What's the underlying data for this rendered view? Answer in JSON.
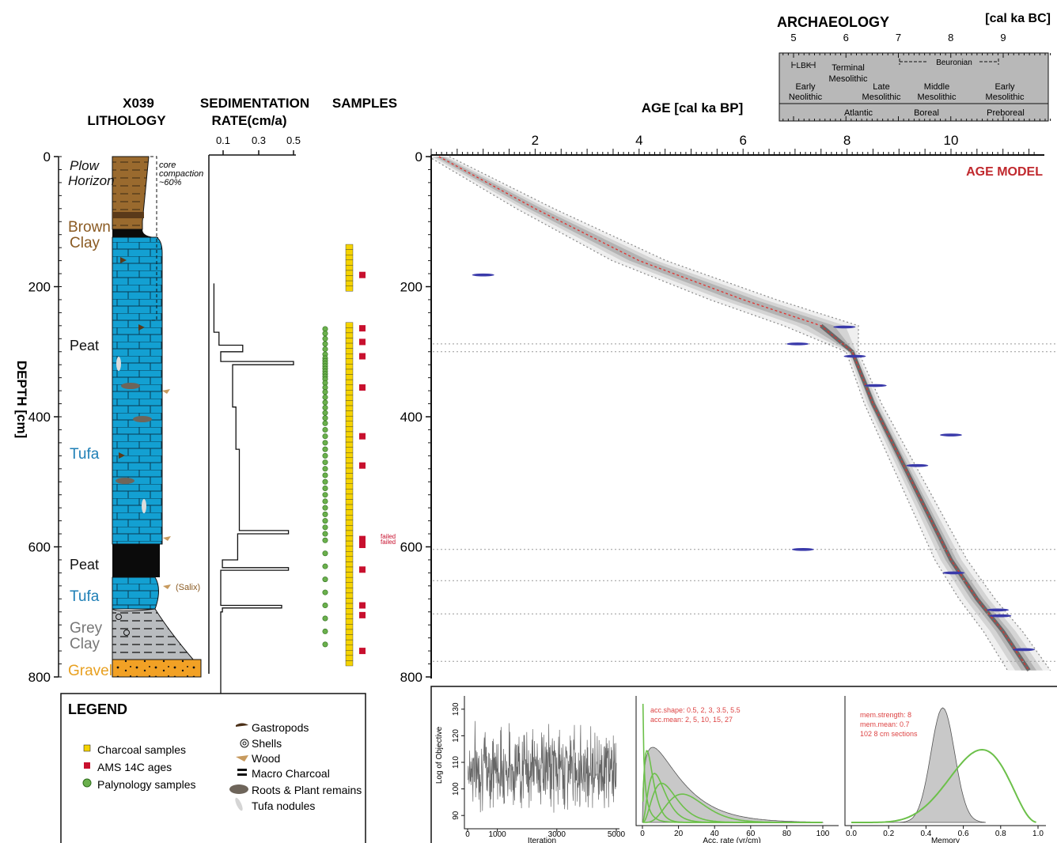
{
  "lithology": {
    "title_line1": "X039",
    "title_line2": "LITHOLOGY",
    "depth_label": "DEPTH [cm]",
    "depth_ticks": [
      "0",
      "200",
      "400",
      "600",
      "800"
    ],
    "units": [
      {
        "label": "Plow",
        "color": "#111111",
        "italic": true
      },
      {
        "label": "Horizon",
        "color": "#111111",
        "italic": true
      },
      {
        "label": "Brown",
        "color": "#8a5a22"
      },
      {
        "label": "Clay",
        "color": "#8a5a22"
      },
      {
        "label": "Peat",
        "color": "#111111"
      },
      {
        "label": "Tufa",
        "color": "#1e7fb6"
      },
      {
        "label": "Peat",
        "color": "#111111"
      },
      {
        "label": "Tufa",
        "color": "#1e7fb6"
      },
      {
        "label": "Grey",
        "color": "#777777"
      },
      {
        "label": "Clay",
        "color": "#777777"
      },
      {
        "label": "Gravel",
        "color": "#e8a020"
      }
    ],
    "compaction_note": [
      "core",
      "compaction",
      "~60%"
    ],
    "salix_label": "(Salix)",
    "colors": {
      "brown": "#9a6a2e",
      "tufa": "#13a0d2",
      "peat": "#0b0b0b",
      "grey": "#b9bcbf",
      "gravel": "#f2a125"
    }
  },
  "sedimentation": {
    "title_line1": "SEDIMENTATION",
    "title_line2": "RATE(cm/a)",
    "ticks": [
      "0.1",
      "0.3",
      "0.5"
    ]
  },
  "samples": {
    "title": "SAMPLES",
    "failed_labels": [
      "failed",
      "failed"
    ],
    "charcoal_ranges_cm": [
      [
        135,
        200
      ],
      [
        255,
        780
      ]
    ],
    "ams_depths_cm": [
      182,
      264,
      285,
      307,
      355,
      430,
      475,
      588,
      597,
      635,
      690,
      705,
      760
    ],
    "palynology_depths_cm": [
      265,
      272,
      280,
      288,
      296,
      304,
      310,
      314,
      318,
      322,
      326,
      330,
      334,
      338,
      342,
      348,
      355,
      362,
      370,
      378,
      386,
      394,
      402,
      410,
      420,
      430,
      440,
      450,
      460,
      470,
      480,
      490,
      500,
      510,
      520,
      530,
      540,
      550,
      560,
      570,
      580,
      590,
      610,
      630,
      650,
      670,
      690,
      710,
      730,
      750
    ]
  },
  "legend": {
    "title": "LEGEND",
    "items_left": [
      "Charcoal samples",
      "AMS 14C ages",
      "Palynology samples"
    ],
    "items_right": [
      "Gastropods",
      "Shells",
      "Wood",
      "Macro Charcoal",
      "Roots & Plant remains",
      "Tufa nodules"
    ],
    "colors": {
      "charcoal": "#f5d300",
      "ams": "#c8102e",
      "palynology": "#6ab04c"
    }
  },
  "archaeology": {
    "title": "ARCHAEOLOGY",
    "unit": "[cal ka BC]",
    "ticks": [
      "5",
      "6",
      "7",
      "8",
      "9"
    ],
    "periods_top": [
      "LBK",
      "Beuronian"
    ],
    "cultures": [
      "Early",
      "Neolithic",
      "Terminal",
      "Mesolithic",
      "Late",
      "Mesolithic",
      "Middle",
      "Mesolithic",
      "Early",
      "Mesolithic"
    ],
    "stages": [
      "Atlantic",
      "Boreal",
      "Preboreal"
    ]
  },
  "age_model": {
    "x_title": "AGE [cal ka BP]",
    "x_ticks": [
      "2",
      "4",
      "6",
      "8",
      "10"
    ],
    "y_ticks": [
      "0",
      "200",
      "400",
      "600",
      "800"
    ],
    "label": "AGE MODEL",
    "label_color": "#c0282d",
    "mean_line_color": "#e0312e",
    "date_color": "#3a3aaa"
  },
  "chart_data": [
    {
      "type": "line",
      "title": "AGE MODEL",
      "xlabel": "AGE [cal ka BP]",
      "ylabel": "DEPTH [cm]",
      "xlim": [
        0,
        11.7
      ],
      "ylim": [
        800,
        0
      ],
      "series": [
        {
          "name": "",
          "x": [
            0.15,
            2.0,
            4.0,
            6.0,
            7.5,
            8.1,
            8.5,
            9.0,
            9.5,
            10.0,
            10.5,
            11.0,
            11.5
          ],
          "y": [
            0,
            80,
            160,
            220,
            260,
            300,
            380,
            460,
            540,
            620,
            680,
            730,
            790
          ]
        }
      ],
      "dates": [
        {
          "x": 1.0,
          "y": 182
        },
        {
          "x": 7.95,
          "y": 262
        },
        {
          "x": 7.05,
          "y": 288
        },
        {
          "x": 8.15,
          "y": 307
        },
        {
          "x": 8.55,
          "y": 352
        },
        {
          "x": 10.0,
          "y": 428
        },
        {
          "x": 9.35,
          "y": 475
        },
        {
          "x": 7.15,
          "y": 604
        },
        {
          "x": 10.05,
          "y": 640
        },
        {
          "x": 10.9,
          "y": 697
        },
        {
          "x": 10.95,
          "y": 706
        },
        {
          "x": 11.4,
          "y": 758
        }
      ],
      "hiatus_depths": [
        288,
        300,
        604,
        652,
        703,
        776
      ]
    },
    {
      "type": "line",
      "title": "",
      "xlabel": "Iteration",
      "ylabel": "Log of Objective",
      "xlim": [
        0,
        5000
      ],
      "ylim": [
        85,
        135
      ],
      "x_ticks": [
        "0",
        "1000",
        "3000",
        "5000"
      ],
      "y_ticks": [
        "90",
        "100",
        "110",
        "120",
        "130"
      ]
    },
    {
      "type": "area",
      "title": "",
      "xlabel": "Acc. rate (yr/cm)",
      "xlim": [
        0,
        100
      ],
      "x_ticks": [
        "0",
        "20",
        "40",
        "60",
        "80",
        "100"
      ],
      "annotation": [
        "acc.shape:  0.5, 2, 3, 3.5, 5.5",
        "acc.mean:  2, 5, 10, 15, 27"
      ]
    },
    {
      "type": "area",
      "title": "",
      "xlabel": "Memory",
      "xlim": [
        0,
        1
      ],
      "x_ticks": [
        "0.0",
        "0.2",
        "0.4",
        "0.6",
        "0.8",
        "1.0"
      ],
      "annotation": [
        "mem.strength: 8",
        "mem.mean: 0.7",
        "102 8 cm sections"
      ]
    }
  ]
}
